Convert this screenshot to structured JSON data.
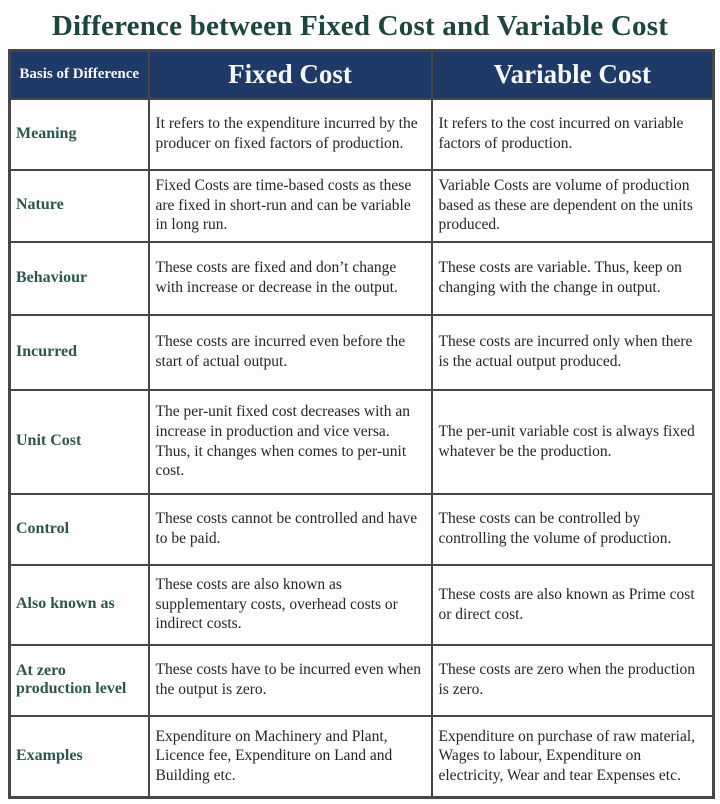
{
  "title": "Difference between Fixed Cost and Variable Cost",
  "colors": {
    "header_background": "#1f3a66",
    "header_text": "#f5f6fa",
    "title_text": "#1f453f",
    "basis_label_text": "#2e564e",
    "body_text": "#262626",
    "border": "#474747"
  },
  "table": {
    "headers": [
      "Basis of Difference",
      "Fixed Cost",
      "Variable Cost"
    ],
    "rows": [
      {
        "basis": "Meaning",
        "fixed": "It refers to the expenditure incurred by the producer on fixed factors of production.",
        "variable": "It refers to the cost incurred on variable factors of production."
      },
      {
        "basis": "Nature",
        "fixed": "Fixed Costs are time-based costs as these are fixed in short-run and can be variable in long run.",
        "variable": "Variable Costs are volume of production based as these are dependent on the units produced."
      },
      {
        "basis": "Behaviour",
        "fixed": "These costs are fixed and don’t change with increase or decrease in the output.",
        "variable": "These costs are variable. Thus, keep on changing with the change in output."
      },
      {
        "basis": "Incurred",
        "fixed": "These costs are incurred even before the start of actual output.",
        "variable": "These costs are incurred only when there is the actual output produced."
      },
      {
        "basis": "Unit Cost",
        "fixed": "The per-unit fixed cost decreases with an increase in production and vice versa. Thus, it changes when comes to per-unit cost.",
        "variable": "The per-unit variable cost is always fixed whatever be the production."
      },
      {
        "basis": "Control",
        "fixed": "These costs cannot be controlled and have to be paid.",
        "variable": "These costs can be controlled by controlling the volume of production."
      },
      {
        "basis": "Also known as",
        "fixed": "These costs are also known as supplementary costs, overhead costs or indirect costs.",
        "variable": "These costs are also known as Prime cost or direct cost."
      },
      {
        "basis": "At zero production level",
        "fixed": "These costs have to be incurred even when the output is zero.",
        "variable": "These costs are zero when the production is zero."
      },
      {
        "basis": "Examples",
        "fixed": "Expenditure on Machinery and Plant, Licence fee, Expenditure on Land and Building etc.",
        "variable": "Expenditure on purchase of raw material, Wages to labour, Expenditure on electricity, Wear and tear Expenses etc."
      }
    ]
  }
}
